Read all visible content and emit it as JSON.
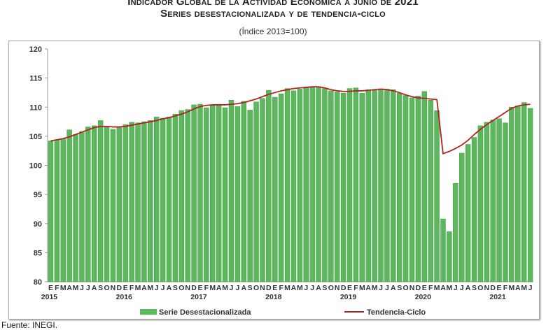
{
  "chart_data": {
    "type": "bar",
    "title": "Indicador Global de la Actividad Económica a junio de 2021",
    "subtitle": "Series desestacionalizada y de tendencia-ciclo",
    "unit_note": "(Índice 2013=100)",
    "ylim": [
      80,
      120
    ],
    "yticks": [
      80,
      85,
      90,
      95,
      100,
      105,
      110,
      115,
      120
    ],
    "grid": false,
    "legend_position": "bottom",
    "month_labels": [
      "E",
      "F",
      "M",
      "A",
      "M",
      "J",
      "J",
      "A",
      "S",
      "O",
      "N",
      "D"
    ],
    "years": [
      "2015",
      "2016",
      "2017",
      "2018",
      "2019",
      "2020",
      "2021"
    ],
    "series": [
      {
        "name": "Serie Desestacionalizada",
        "type": "bar",
        "color": "#5cb85c",
        "values": [
          104.2,
          104.4,
          104.6,
          106.1,
          105.3,
          105.8,
          106.6,
          106.8,
          107.7,
          106.6,
          106.2,
          106.6,
          107.0,
          107.4,
          107.3,
          107.5,
          107.7,
          108.3,
          108.1,
          108.3,
          108.8,
          109.4,
          109.6,
          110.4,
          110.5,
          109.9,
          110.3,
          110.5,
          109.9,
          111.2,
          110.1,
          111.0,
          109.5,
          110.9,
          111.5,
          112.9,
          111.7,
          112.3,
          113.2,
          112.8,
          113.1,
          113.3,
          113.4,
          113.5,
          113.2,
          112.8,
          112.6,
          112.4,
          113.2,
          113.3,
          112.4,
          113.0,
          112.9,
          113.0,
          113.1,
          113.0,
          112.4,
          112.0,
          111.6,
          111.9,
          112.7,
          111.2,
          109.4,
          90.8,
          88.6,
          96.9,
          102.1,
          103.6,
          104.8,
          106.8,
          107.4,
          107.8,
          108.0,
          107.3,
          110.0,
          110.2,
          110.8,
          109.8
        ]
      },
      {
        "name": "Tendencia-Ciclo",
        "type": "line",
        "color": "#b22222",
        "values": [
          104.2,
          104.4,
          104.6,
          104.9,
          105.3,
          105.7,
          106.1,
          106.5,
          106.7,
          106.7,
          106.6,
          106.6,
          106.7,
          106.9,
          107.1,
          107.3,
          107.5,
          107.7,
          108.0,
          108.2,
          108.5,
          108.8,
          109.2,
          109.7,
          110.1,
          110.3,
          110.4,
          110.4,
          110.4,
          110.5,
          110.6,
          110.8,
          111.1,
          111.4,
          111.8,
          112.2,
          112.5,
          112.8,
          113.0,
          113.2,
          113.3,
          113.4,
          113.5,
          113.5,
          113.3,
          113.0,
          112.8,
          112.7,
          112.7,
          112.8,
          112.8,
          112.9,
          113.0,
          113.1,
          113.0,
          112.8,
          112.5,
          112.1,
          111.8,
          111.6,
          111.5,
          111.4,
          111.3,
          102.0,
          102.4,
          102.9,
          103.5,
          104.3,
          105.3,
          106.2,
          107.0,
          107.7,
          108.4,
          109.1,
          109.8,
          110.2,
          110.4,
          110.5
        ]
      }
    ]
  },
  "source": "Fuente: INEGI."
}
